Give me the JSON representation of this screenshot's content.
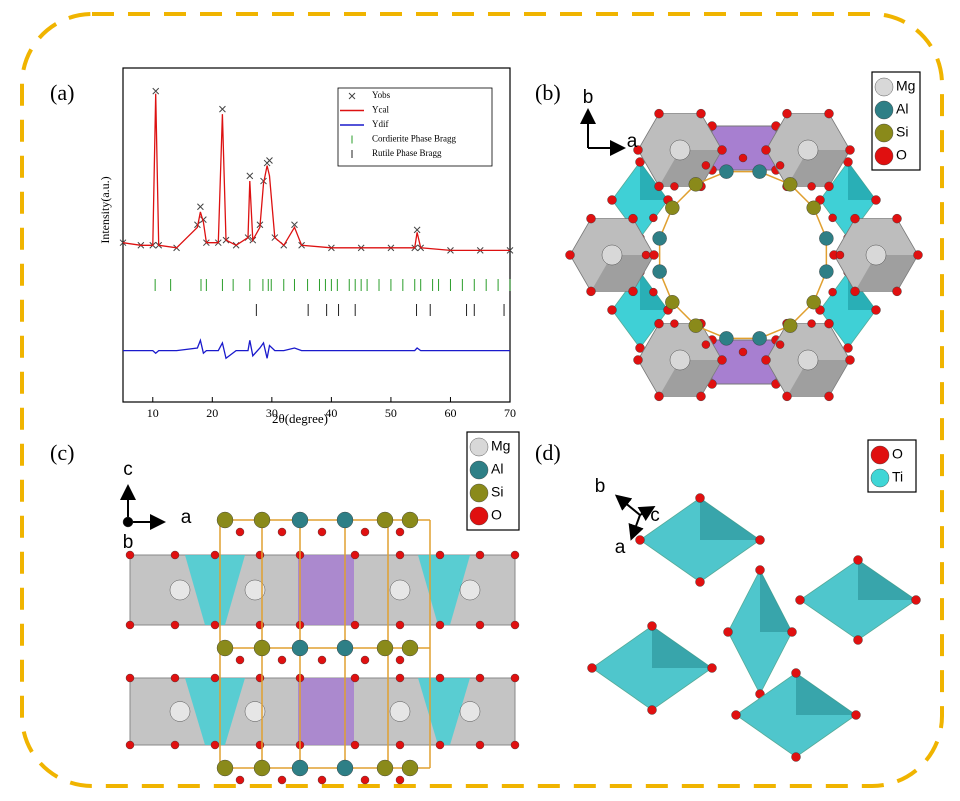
{
  "panel_labels": [
    "(a)",
    "(b)",
    "(c)",
    "(d)"
  ],
  "chart_data": {
    "type": "line",
    "xlabel": "2θ(degree)",
    "ylabel": "Intensity(a.u.)",
    "xlim": [
      5,
      70
    ],
    "xticks": [
      10,
      20,
      30,
      40,
      50,
      60,
      70
    ],
    "ylim": [
      -30,
      100
    ],
    "x": [
      5,
      8,
      10,
      10.5,
      11,
      14,
      17.5,
      18,
      18.5,
      19,
      21,
      21.7,
      22.3,
      24,
      26,
      26.3,
      26.8,
      28,
      28.6,
      29.2,
      29.6,
      30.5,
      32,
      33.8,
      35,
      40,
      45,
      50,
      54,
      54.4,
      55,
      60,
      65,
      70
    ],
    "series": [
      {
        "name": "Yobs",
        "color": "#444444",
        "marker": "x",
        "values": [
          32,
          31,
          31,
          91,
          31,
          30,
          39,
          46,
          41,
          32,
          32,
          84,
          33,
          31,
          34,
          58,
          33,
          39,
          56,
          63,
          64,
          34,
          31,
          39,
          31,
          30,
          30,
          30,
          30,
          37,
          30,
          29,
          29,
          29
        ]
      },
      {
        "name": "Ycal",
        "color": "#dd1111",
        "values": [
          32,
          31,
          31,
          90,
          31,
          30,
          38,
          44,
          40,
          32,
          32,
          82,
          33,
          31,
          34,
          56,
          33,
          38,
          55,
          62,
          58,
          34,
          31,
          38,
          31,
          30,
          30,
          30,
          30,
          36,
          30,
          29,
          29,
          29
        ]
      },
      {
        "name": "Ydif",
        "color": "#1a1acc",
        "values": [
          -10,
          -10,
          -10,
          -11,
          -10,
          -10,
          -9,
          -6,
          -11,
          -10,
          -10,
          -7,
          -13,
          -10,
          -10,
          -6,
          -12,
          -9,
          -7,
          -13,
          -8,
          -10,
          -10,
          -9,
          -10,
          -10,
          -10,
          -10,
          -10,
          -9,
          -10,
          -10,
          -10,
          -10
        ]
      }
    ],
    "reflections": [
      {
        "name": "Cordierite Phase Bragg",
        "color": "#2a9d2a",
        "x": [
          10.4,
          13,
          18.1,
          19,
          21.7,
          23.5,
          26.3,
          28.5,
          29.4,
          29.9,
          32,
          33.8,
          36,
          38,
          39,
          40,
          41,
          43,
          44,
          45,
          46,
          48,
          50,
          52,
          54,
          55,
          57,
          58,
          60,
          62,
          64,
          66,
          68,
          70
        ]
      },
      {
        "name": "Rutile Phase Bragg",
        "color": "#222222",
        "x": [
          27.4,
          36.1,
          39.2,
          41.2,
          44,
          54.3,
          56.6,
          62.7,
          64,
          69
        ]
      }
    ]
  },
  "structure_b": {
    "legend": [
      {
        "name": "Mg",
        "color": "#d8d8d8"
      },
      {
        "name": "Al",
        "color": "#2e7f86"
      },
      {
        "name": "Si",
        "color": "#8a8a1a"
      },
      {
        "name": "O",
        "color": "#e01010"
      }
    ],
    "axes": [
      "b",
      "a"
    ]
  },
  "structure_c": {
    "legend": [
      {
        "name": "Mg",
        "color": "#d8d8d8"
      },
      {
        "name": "Al",
        "color": "#2e7f86"
      },
      {
        "name": "Si",
        "color": "#8a8a1a"
      },
      {
        "name": "O",
        "color": "#e01010"
      }
    ],
    "axes": [
      "c",
      "a",
      "b"
    ]
  },
  "structure_d": {
    "legend": [
      {
        "name": "O",
        "color": "#e01010"
      },
      {
        "name": "Ti",
        "color": "#3fd6d6"
      }
    ],
    "axes": [
      "b",
      "c",
      "a"
    ]
  }
}
